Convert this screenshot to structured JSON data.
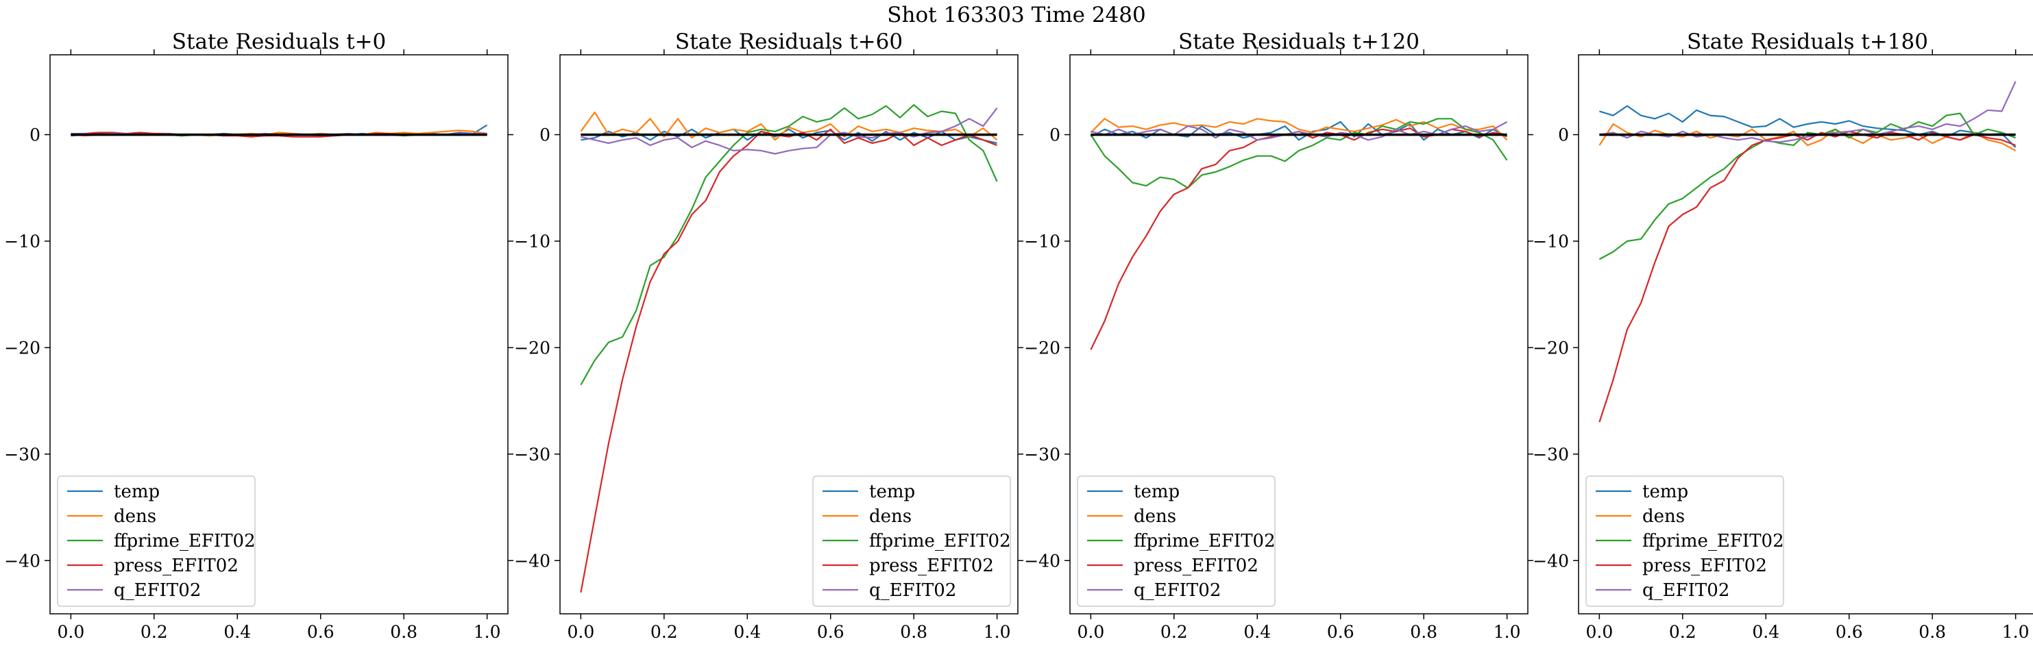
{
  "figure": {
    "suptitle": "Shot 163303   Time 2480"
  },
  "colors": {
    "temp": "#1f77b4",
    "dens": "#ff7f0e",
    "ffprime_EFIT02": "#2ca02c",
    "press_EFIT02": "#d62728",
    "q_EFIT02": "#9467bd",
    "zero_line": "#000000"
  },
  "chart_data": [
    {
      "type": "line",
      "title": "State Residuals t+0",
      "xlim": [
        -0.05,
        1.05
      ],
      "ylim": [
        -45,
        7.5
      ],
      "xticks": [
        0.0,
        0.2,
        0.4,
        0.6,
        0.8,
        1.0
      ],
      "xtick_labels": [
        "0.0",
        "0.2",
        "0.4",
        "0.6",
        "0.8",
        "1.0"
      ],
      "yticks": [
        0,
        -10,
        -20,
        -30,
        -40
      ],
      "ytick_labels": [
        "0",
        "−10",
        "−20",
        "−30",
        "−40"
      ],
      "legend_position": "lower-left",
      "x": [
        0.0,
        0.0333,
        0.0667,
        0.1,
        0.1333,
        0.1667,
        0.2,
        0.2333,
        0.2667,
        0.3,
        0.3333,
        0.3667,
        0.4,
        0.4333,
        0.4667,
        0.5,
        0.5333,
        0.5667,
        0.6,
        0.6333,
        0.6667,
        0.7,
        0.7333,
        0.7667,
        0.8,
        0.8333,
        0.8667,
        0.9,
        0.9333,
        0.9667,
        1.0
      ],
      "series": [
        {
          "name": "temp",
          "values": [
            -0.1,
            0.0,
            0.1,
            0.0,
            0.0,
            0.1,
            0.0,
            0.0,
            -0.1,
            0.0,
            0.0,
            0.1,
            0.0,
            -0.1,
            0.0,
            0.0,
            0.1,
            0.0,
            0.0,
            -0.1,
            0.0,
            0.1,
            0.0,
            0.0,
            0.1,
            0.0,
            0.1,
            0.0,
            0.2,
            0.1,
            0.9
          ]
        },
        {
          "name": "dens",
          "values": [
            0.0,
            -0.1,
            0.0,
            0.1,
            0.0,
            0.0,
            0.1,
            0.0,
            0.0,
            0.0,
            -0.1,
            0.0,
            0.0,
            0.1,
            0.0,
            0.2,
            0.1,
            0.0,
            0.1,
            0.0,
            0.1,
            0.0,
            0.2,
            0.1,
            0.2,
            0.1,
            0.2,
            0.3,
            0.4,
            0.3,
            0.1
          ]
        },
        {
          "name": "ffprime_EFIT02",
          "values": [
            0.0,
            0.1,
            0.0,
            0.0,
            0.1,
            0.0,
            0.0,
            0.0,
            -0.1,
            0.0,
            0.0,
            -0.1,
            0.0,
            0.0,
            -0.1,
            0.0,
            0.0,
            0.0,
            -0.1,
            0.0,
            0.0,
            0.0,
            0.0,
            0.0,
            -0.1,
            0.0,
            0.0,
            0.0,
            0.1,
            0.0,
            0.1
          ]
        },
        {
          "name": "press_EFIT02",
          "values": [
            0.0,
            0.1,
            0.2,
            0.2,
            0.1,
            0.2,
            0.1,
            0.1,
            0.0,
            0.0,
            0.0,
            -0.1,
            -0.1,
            -0.2,
            -0.1,
            -0.1,
            -0.2,
            -0.2,
            -0.2,
            -0.1,
            0.0,
            0.0,
            0.1,
            0.1,
            0.0,
            0.0,
            0.0,
            0.0,
            0.1,
            0.0,
            0.0
          ]
        },
        {
          "name": "q_EFIT02",
          "values": [
            0.1,
            0.1,
            0.0,
            0.1,
            0.1,
            0.0,
            0.0,
            0.1,
            0.0,
            0.0,
            0.0,
            0.0,
            0.0,
            0.0,
            0.1,
            0.0,
            0.0,
            0.0,
            0.0,
            0.0,
            0.1,
            0.0,
            0.0,
            0.0,
            0.0,
            0.0,
            0.0,
            0.0,
            0.1,
            0.1,
            0.1
          ]
        }
      ]
    },
    {
      "type": "line",
      "title": "State Residuals t+60",
      "xlim": [
        -0.05,
        1.05
      ],
      "ylim": [
        -45,
        7.5
      ],
      "xticks": [
        0.0,
        0.2,
        0.4,
        0.6,
        0.8,
        1.0
      ],
      "xtick_labels": [
        "0.0",
        "0.2",
        "0.4",
        "0.6",
        "0.8",
        "1.0"
      ],
      "yticks": [
        0,
        -10,
        -20,
        -30,
        -40
      ],
      "ytick_labels": [
        "0",
        "−10",
        "−20",
        "−30",
        "−40"
      ],
      "legend_position": "lower-right",
      "x": [
        0.0,
        0.0333,
        0.0667,
        0.1,
        0.1333,
        0.1667,
        0.2,
        0.2333,
        0.2667,
        0.3,
        0.3333,
        0.3667,
        0.4,
        0.4333,
        0.4667,
        0.5,
        0.5333,
        0.5667,
        0.6,
        0.6333,
        0.6667,
        0.7,
        0.7333,
        0.7667,
        0.8,
        0.8333,
        0.8667,
        0.9,
        0.9333,
        0.9667,
        1.0
      ],
      "series": [
        {
          "name": "temp",
          "values": [
            -0.5,
            -0.3,
            0.3,
            -0.2,
            0.2,
            -0.5,
            0.3,
            -0.2,
            0.5,
            -0.3,
            0.2,
            0.5,
            -0.5,
            0.3,
            -0.2,
            0.5,
            -0.3,
            0.2,
            0.4,
            -0.5,
            0.2,
            -0.6,
            0.3,
            -0.5,
            0.2,
            -0.3,
            0.3,
            -0.5,
            -0.2,
            -0.5,
            -0.8
          ]
        },
        {
          "name": "dens",
          "values": [
            0.3,
            2.1,
            0.0,
            0.5,
            0.2,
            1.5,
            -0.2,
            1.5,
            -0.3,
            0.6,
            0.2,
            0.5,
            0.3,
            1.0,
            -0.5,
            0.7,
            0.2,
            0.4,
            1.0,
            -0.2,
            0.8,
            0.3,
            0.5,
            0.2,
            0.6,
            0.4,
            0.3,
            0.5,
            -0.2,
            0.6,
            -0.5
          ]
        },
        {
          "name": "ffprime_EFIT02",
          "values": [
            -23.5,
            -21.2,
            -19.5,
            -19.0,
            -16.5,
            -12.3,
            -11.5,
            -9.5,
            -7.0,
            -4.0,
            -2.5,
            -1.0,
            0.2,
            0.5,
            0.3,
            0.8,
            1.7,
            1.2,
            1.5,
            2.5,
            1.5,
            1.9,
            2.7,
            1.6,
            2.8,
            1.7,
            2.2,
            2.0,
            -0.5,
            -1.5,
            -4.4
          ]
        },
        {
          "name": "press_EFIT02",
          "values": [
            -43.0,
            -36.0,
            -29.0,
            -23.0,
            -18.0,
            -13.8,
            -11.2,
            -10.0,
            -7.5,
            -6.2,
            -3.5,
            -2.0,
            -1.0,
            0.3,
            0.0,
            -0.2,
            0.2,
            -0.5,
            0.5,
            -0.8,
            -0.3,
            -0.8,
            -0.5,
            0.2,
            -1.0,
            -0.3,
            -1.0,
            -0.5,
            0.0,
            -0.5,
            -1.0
          ]
        },
        {
          "name": "q_EFIT02",
          "values": [
            -0.2,
            -0.5,
            -0.8,
            -0.5,
            -0.3,
            -1.0,
            -0.5,
            -0.3,
            -1.2,
            -0.6,
            -1.0,
            -1.5,
            -1.4,
            -1.5,
            -1.8,
            -1.5,
            -1.3,
            -1.2,
            0.0,
            0.2,
            -0.2,
            -0.3,
            0.1,
            0.2,
            -0.2,
            0.2,
            0.3,
            0.8,
            1.5,
            0.8,
            2.5
          ]
        }
      ]
    },
    {
      "type": "line",
      "title": "State Residuals t+120",
      "xlim": [
        -0.05,
        1.05
      ],
      "ylim": [
        -45,
        7.5
      ],
      "xticks": [
        0.0,
        0.2,
        0.4,
        0.6,
        0.8,
        1.0
      ],
      "xtick_labels": [
        "0.0",
        "0.2",
        "0.4",
        "0.6",
        "0.8",
        "1.0"
      ],
      "yticks": [
        0,
        -10,
        -20,
        -30,
        -40
      ],
      "ytick_labels": [
        "0",
        "−10",
        "−20",
        "−30",
        "−40"
      ],
      "legend_position": "lower-left",
      "x": [
        0.0,
        0.0333,
        0.0667,
        0.1,
        0.1333,
        0.1667,
        0.2,
        0.2333,
        0.2667,
        0.3,
        0.3333,
        0.3667,
        0.4,
        0.4333,
        0.4667,
        0.5,
        0.5333,
        0.5667,
        0.6,
        0.6333,
        0.6667,
        0.7,
        0.7333,
        0.7667,
        0.8,
        0.8333,
        0.8667,
        0.9,
        0.9333,
        0.9667,
        1.0
      ],
      "series": [
        {
          "name": "temp",
          "values": [
            -0.2,
            0.5,
            0.0,
            0.3,
            -0.3,
            0.5,
            0.0,
            -0.2,
            0.8,
            0.0,
            0.2,
            -0.3,
            0.0,
            0.2,
            0.8,
            -0.5,
            0.3,
            0.5,
            1.2,
            -0.2,
            1.0,
            0.0,
            0.3,
            1.0,
            -0.5,
            0.5,
            0.0,
            0.3,
            -0.3,
            0.5,
            -0.2
          ]
        },
        {
          "name": "dens",
          "values": [
            0.2,
            1.5,
            0.7,
            0.8,
            0.5,
            0.9,
            1.1,
            0.8,
            0.9,
            0.7,
            1.2,
            1.0,
            1.5,
            1.3,
            1.2,
            0.5,
            0.2,
            0.7,
            0.5,
            0.3,
            0.6,
            0.9,
            1.4,
            0.8,
            1.2,
            0.6,
            1.0,
            0.5,
            0.5,
            0.8,
            -0.5
          ]
        },
        {
          "name": "ffprime_EFIT02",
          "values": [
            0.0,
            -2.0,
            -3.2,
            -4.5,
            -4.8,
            -4.0,
            -4.2,
            -5.0,
            -3.8,
            -3.5,
            -3.0,
            -2.4,
            -2.0,
            -2.0,
            -2.5,
            -1.5,
            -1.0,
            -0.3,
            -0.5,
            0.2,
            0.0,
            0.8,
            0.5,
            1.2,
            1.0,
            1.5,
            1.5,
            0.5,
            0.2,
            -0.5,
            -2.4
          ]
        },
        {
          "name": "press_EFIT02",
          "values": [
            -20.2,
            -17.5,
            -14.0,
            -11.5,
            -9.5,
            -7.2,
            -5.6,
            -5.0,
            -3.2,
            -2.8,
            -1.5,
            -1.2,
            -0.5,
            -0.2,
            0.0,
            0.3,
            -0.3,
            0.2,
            0.0,
            -0.5,
            0.2,
            0.5,
            0.3,
            0.6,
            -0.2,
            0.0,
            0.5,
            0.3,
            -0.2,
            0.2,
            0.0
          ]
        },
        {
          "name": "q_EFIT02",
          "values": [
            0.3,
            0.0,
            0.5,
            0.0,
            0.3,
            0.5,
            0.0,
            0.8,
            0.5,
            -0.3,
            0.5,
            0.2,
            -0.5,
            -0.3,
            0.0,
            0.3,
            0.0,
            -0.2,
            0.2,
            0.0,
            -0.5,
            -0.2,
            0.5,
            0.0,
            0.3,
            0.0,
            0.5,
            0.8,
            0.3,
            0.5,
            1.2
          ]
        }
      ]
    },
    {
      "type": "line",
      "title": "State Residuals t+180",
      "xlim": [
        -0.05,
        1.05
      ],
      "ylim": [
        -45,
        7.5
      ],
      "xticks": [
        0.0,
        0.2,
        0.4,
        0.6,
        0.8,
        1.0
      ],
      "xtick_labels": [
        "0.0",
        "0.2",
        "0.4",
        "0.6",
        "0.8",
        "1.0"
      ],
      "yticks": [
        0,
        -10,
        -20,
        -30,
        -40
      ],
      "ytick_labels": [
        "0",
        "−10",
        "−20",
        "−30",
        "−40"
      ],
      "legend_position": "lower-left",
      "x": [
        0.0,
        0.0333,
        0.0667,
        0.1,
        0.1333,
        0.1667,
        0.2,
        0.2333,
        0.2667,
        0.3,
        0.3333,
        0.3667,
        0.4,
        0.4333,
        0.4667,
        0.5,
        0.5333,
        0.5667,
        0.6,
        0.6333,
        0.6667,
        0.7,
        0.7333,
        0.7667,
        0.8,
        0.8333,
        0.8667,
        0.9,
        0.9333,
        0.9667,
        1.0
      ],
      "series": [
        {
          "name": "temp",
          "values": [
            2.2,
            1.8,
            2.7,
            1.8,
            1.5,
            2.0,
            1.2,
            2.3,
            1.8,
            1.7,
            1.2,
            0.7,
            0.8,
            1.5,
            0.7,
            1.0,
            1.2,
            1.0,
            1.3,
            0.8,
            0.6,
            0.5,
            0.4,
            0.0,
            0.3,
            -0.2,
            0.4,
            0.2,
            0.0,
            0.1,
            -1.2
          ]
        },
        {
          "name": "dens",
          "values": [
            -1.0,
            1.0,
            0.2,
            -0.2,
            0.4,
            0.0,
            -0.2,
            0.3,
            -0.3,
            0.0,
            -0.2,
            0.5,
            -0.5,
            -0.2,
            0.3,
            -1.0,
            -0.5,
            0.5,
            -0.2,
            -0.8,
            0.0,
            -0.5,
            -0.3,
            0.0,
            -0.8,
            -0.2,
            -0.5,
            0.2,
            -0.5,
            -0.8,
            -1.5
          ]
        },
        {
          "name": "ffprime_EFIT02",
          "values": [
            -11.7,
            -11.0,
            -10.0,
            -9.8,
            -8.0,
            -6.5,
            -6.0,
            -5.0,
            -4.0,
            -3.2,
            -2.0,
            -1.2,
            -0.5,
            -0.8,
            -1.0,
            0.2,
            0.0,
            0.5,
            -0.3,
            0.5,
            0.2,
            1.0,
            0.5,
            1.2,
            0.8,
            1.8,
            2.0,
            0.0,
            0.5,
            0.2,
            -0.3
          ]
        },
        {
          "name": "press_EFIT02",
          "values": [
            -27.0,
            -23.0,
            -18.3,
            -15.8,
            -12.0,
            -8.6,
            -7.5,
            -6.8,
            -5.0,
            -4.3,
            -2.2,
            -1.0,
            -0.5,
            -0.3,
            0.0,
            -0.5,
            0.2,
            -0.2,
            0.3,
            0.0,
            -0.3,
            0.2,
            0.0,
            -0.5,
            0.2,
            -0.2,
            -0.5,
            0.0,
            -0.3,
            -0.5,
            -1.0
          ]
        },
        {
          "name": "q_EFIT02",
          "values": [
            0.0,
            0.2,
            -0.3,
            0.3,
            0.0,
            -0.2,
            0.3,
            -0.2,
            0.0,
            -0.3,
            -0.5,
            -0.3,
            -0.6,
            -0.7,
            -0.5,
            -0.2,
            0.0,
            0.2,
            0.3,
            0.5,
            0.0,
            0.3,
            0.6,
            0.8,
            0.5,
            1.0,
            0.8,
            1.5,
            2.3,
            2.2,
            5.0
          ]
        }
      ]
    }
  ]
}
